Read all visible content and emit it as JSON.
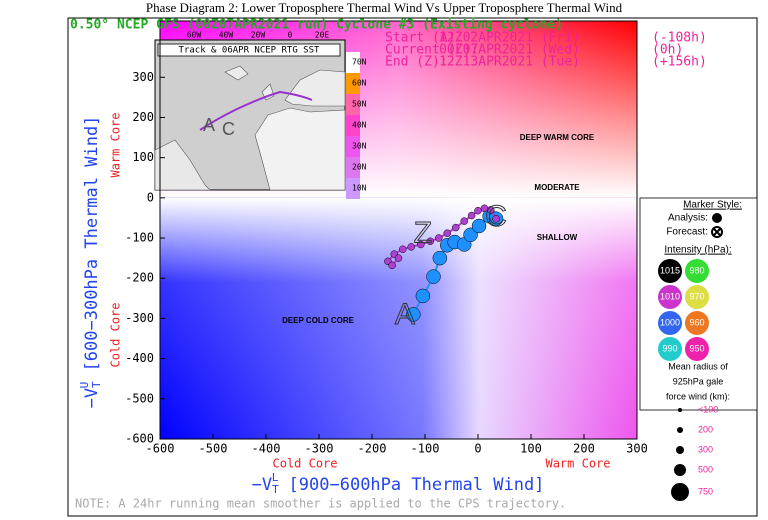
{
  "page_title": "Phase Diagram 2: Lower Troposphere Thermal Wind Vs Upper Troposphere Thermal Wind",
  "chart_data": {
    "type": "line",
    "title": "0.50° NCEP GFS (00Z07APR2021 run) Cyclone #3 (Existing cyclone)",
    "info": [
      [
        "Start (A):",
        "12Z02APR2021 (Fri)",
        "(-108h)"
      ],
      [
        "Current (C):",
        "00Z07APR2021 (Wed)",
        "(0h)"
      ],
      [
        "End (Z):",
        "12Z13APR2021 (Tue)",
        "(+156h)"
      ]
    ],
    "x_label": {
      "main": "−V",
      "sub": "T",
      "sup": "L",
      "rest": " [900−600hPa Thermal Wind]"
    },
    "y_label": {
      "main": "−V",
      "sub": "T",
      "sup": "U",
      "rest": " [600−300hPa Thermal Wind]"
    },
    "x_side_labels": [
      "Cold Core",
      "Warm Core"
    ],
    "y_side_labels": [
      "Warm Core",
      "Cold Core"
    ],
    "regions": [
      "DEEP WARM CORE",
      "MODERATE",
      "SHALLOW",
      "DEEP COLD CORE"
    ],
    "xlim": [
      -600,
      300
    ],
    "ylim": [
      -600,
      440
    ],
    "xticks": [
      -600,
      -500,
      -400,
      -300,
      -200,
      -100,
      0,
      100,
      200,
      300
    ],
    "yticks": [
      -600,
      -500,
      -400,
      -300,
      -200,
      -100,
      0,
      100,
      200,
      300
    ],
    "series": [
      {
        "name": "Analysis",
        "color": "#1e90ff",
        "x": [
          -122,
          -104,
          -84,
          -72,
          -58,
          -44,
          -26,
          -14,
          2,
          22,
          34
        ],
        "values": [
          -290,
          -244,
          -196,
          -150,
          -118,
          -110,
          -116,
          -92,
          -70,
          -46,
          -52
        ]
      },
      {
        "name": "Forecast",
        "color": "#b040d0",
        "x": [
          34,
          24,
          12,
          0,
          -12,
          -26,
          -42,
          -58,
          -74,
          -90,
          -108,
          -126,
          -142,
          -158,
          -170,
          -162,
          -150
        ],
        "values": [
          -52,
          -30,
          -26,
          -32,
          -44,
          -58,
          -74,
          -88,
          -100,
          -108,
          -116,
          -122,
          -128,
          -140,
          -158,
          -168,
          -150
        ]
      }
    ],
    "point_labels": [
      {
        "label": "A",
        "x": -138,
        "y": -294
      },
      {
        "label": "C",
        "x": 34,
        "y": -50
      },
      {
        "label": "Z",
        "x": -104,
        "y": -92
      }
    ],
    "map": {
      "title": "Track & 06APR NCEP RTG SST",
      "lon_labels": [
        "60W",
        "40W",
        "20W",
        "0",
        "20E"
      ],
      "lat_labels": [
        "70N",
        "60N",
        "50N",
        "40N",
        "30N",
        "20N",
        "10N"
      ],
      "lat_colors": [
        "#ffffff",
        "#ff9900",
        "#ff66aa",
        "#ff44cc",
        "#ee55ee",
        "#dd77ee",
        "#cc99ff"
      ],
      "track_letters": [
        "A",
        "C"
      ]
    },
    "legend": {
      "marker_style": "Marker Style:",
      "analysis": "Analysis:",
      "forecast": "Forecast:",
      "intensity_title": "Intensity (hPa):",
      "intensity": [
        {
          "label": 1015,
          "color": "#000000"
        },
        {
          "label": 980,
          "color": "#33dd33"
        },
        {
          "label": 1010,
          "color": "#cc33cc"
        },
        {
          "label": 970,
          "color": "#dddd44"
        },
        {
          "label": 1000,
          "color": "#3366ee"
        },
        {
          "label": 960,
          "color": "#ee7722"
        },
        {
          "label": 990,
          "color": "#22cccc"
        },
        {
          "label": 950,
          "color": "#ee22aa"
        }
      ],
      "radius_title": [
        "Mean radius of",
        "925hPa gale",
        "force wind (km):"
      ],
      "radius": [
        {
          "value": 100,
          "label": "<100"
        },
        200,
        300,
        500,
        750
      ]
    },
    "note": "NOTE:  A 24hr running mean smoother is applied to the CPS trajectory."
  }
}
